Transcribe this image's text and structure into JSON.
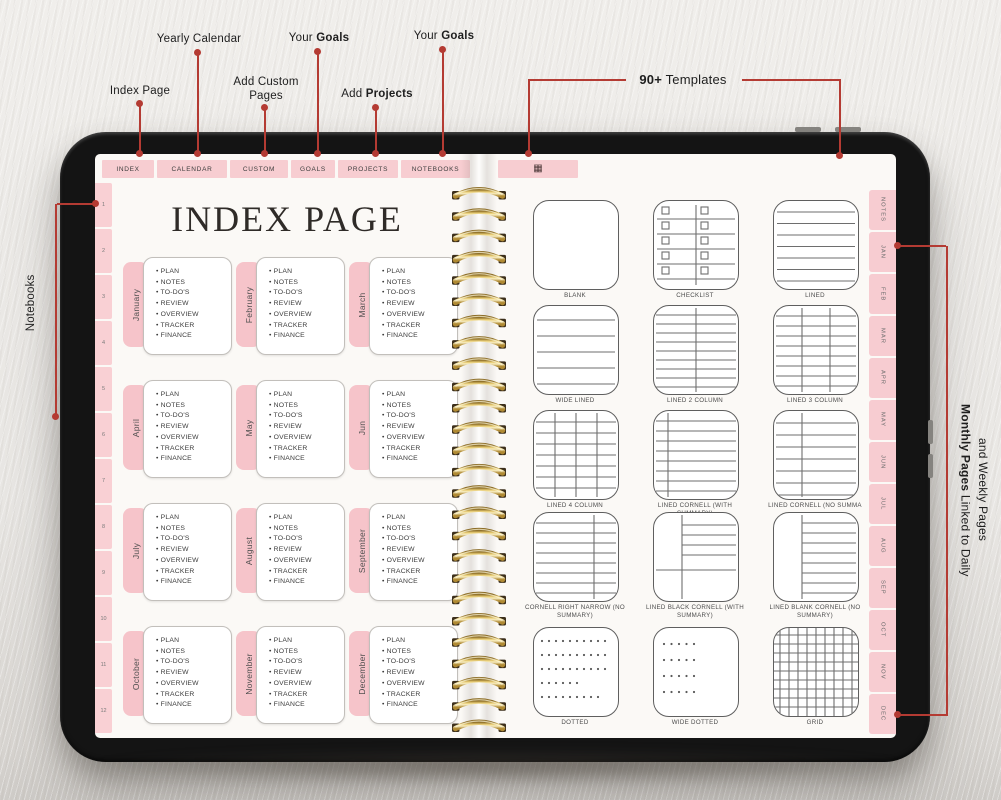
{
  "colors": {
    "accent_red": "#b43b33",
    "tab_pink": "#f7cdd1",
    "month_tab_pink": "#f6c4ca",
    "page_bg": "#fbf9f6",
    "bezel_black": "#141414",
    "wall": "#eae8e5",
    "spiral_gold": "#e8cc74",
    "line_gray": "#6e6e6e"
  },
  "annotations": {
    "index_page": {
      "text": "Index Page"
    },
    "yearly_calendar": {
      "text": "Yearly Calendar"
    },
    "add_custom_pages": {
      "line1": "Add Custom",
      "line2": "Pages"
    },
    "your_goals_top": {
      "regular": "Your ",
      "bold": "Goals"
    },
    "add_projects": {
      "regular": "Add ",
      "bold": "Projects"
    },
    "your_goals_right": {
      "regular": "Your ",
      "bold": "Goals"
    },
    "templates_count": {
      "bold": "90+",
      "regular": " Templates"
    },
    "notebooks": {
      "text": "Notebooks"
    },
    "monthly_pages": {
      "bold": "Monthly Pages",
      "line1_rest": " Linked to Daily",
      "line2": "and Weekly Pages"
    }
  },
  "icons": {
    "templates_tab": "▦"
  },
  "top_tabs": [
    {
      "label": "INDEX"
    },
    {
      "label": "CALENDAR"
    },
    {
      "label": "CUSTOM"
    },
    {
      "label": "GOALS"
    },
    {
      "label": "PROJECTS"
    },
    {
      "label": "NOTEBOOKS"
    }
  ],
  "left_page": {
    "title": "INDEX PAGE",
    "page_numbers": [
      "1",
      "2",
      "3",
      "4",
      "5",
      "6",
      "7",
      "8",
      "9",
      "10",
      "11",
      "12"
    ],
    "months": [
      "January",
      "February",
      "March",
      "April",
      "May",
      "Jun",
      "July",
      "August",
      "September",
      "October",
      "November",
      "December"
    ],
    "month_checklist": [
      "PLAN",
      "NOTES",
      "TO-DO'S",
      "REVIEW",
      "OVERVIEW",
      "TRACKER",
      "FINANCE"
    ]
  },
  "right_page": {
    "templates": [
      {
        "label": "BLANK",
        "pattern": "blank"
      },
      {
        "label": "CHECKLIST",
        "pattern": "checklist"
      },
      {
        "label": "LINED",
        "pattern": "lined"
      },
      {
        "label": "WIDE LINED",
        "pattern": "wide-lined"
      },
      {
        "label": "LINED 2 COLUMN",
        "pattern": "lined-2col"
      },
      {
        "label": "LINED 3 COLUMN",
        "pattern": "lined-3col"
      },
      {
        "label": "LINED 4 COLUMN",
        "pattern": "lined-4col"
      },
      {
        "label": "LINED CORNELL (WITH SUMMARY)",
        "pattern": "cornell-left"
      },
      {
        "label": "LINED CORNELL (NO SUMMA",
        "pattern": "cornell-left-wide"
      },
      {
        "label": "CORNELL RIGHT NARROW (NO SUMMARY)",
        "pattern": "cornell-right"
      },
      {
        "label": "LINED BLACK CORNELL (WITH SUMMARY)",
        "pattern": "cornell-black"
      },
      {
        "label": "LINED BLANK CORNELL (NO SUMMARY)",
        "pattern": "cornell-blank"
      },
      {
        "label": "DOTTED",
        "pattern": "dotted"
      },
      {
        "label": "WIDE DOTTED",
        "pattern": "wide-dotted"
      },
      {
        "label": "GRID",
        "pattern": "grid"
      }
    ],
    "side_tabs": [
      "NOTES",
      "JAN",
      "FEB",
      "MAR",
      "APR",
      "MAY",
      "JUN",
      "JUL",
      "AUG",
      "SEP",
      "OCT",
      "NOV",
      "DEC"
    ]
  }
}
